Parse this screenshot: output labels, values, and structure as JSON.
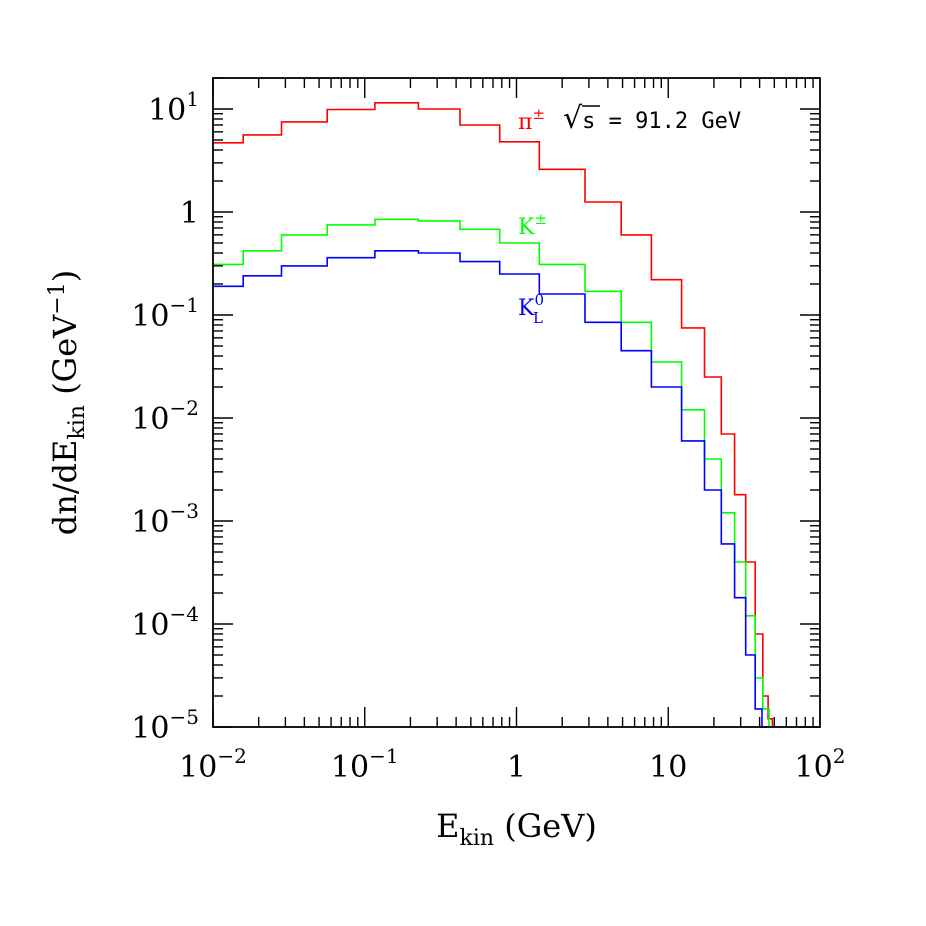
{
  "chart_data": {
    "type": "line",
    "style": "step-histogram",
    "x_scale": "log",
    "y_scale": "log",
    "xlim": [
      0.01,
      100
    ],
    "ylim": [
      1e-05,
      20
    ],
    "xlabel": {
      "main": "E",
      "sub": "kin",
      "rest": " (GeV)"
    },
    "ylabel": {
      "main": "dn/dE",
      "sub": "kin",
      "rest": "  (GeV",
      "sup": "−1",
      "close": ")"
    },
    "x_ticks": [
      {
        "value": 0.01,
        "base": "10",
        "exp": "−2"
      },
      {
        "value": 0.1,
        "base": "10",
        "exp": "−1"
      },
      {
        "value": 1,
        "base": "1",
        "exp": ""
      },
      {
        "value": 10,
        "base": "10",
        "exp": ""
      },
      {
        "value": 100,
        "base": "10",
        "exp": "2"
      }
    ],
    "y_ticks": [
      {
        "value": 10,
        "base": "10",
        "exp": "1"
      },
      {
        "value": 1,
        "base": "1",
        "exp": ""
      },
      {
        "value": 0.1,
        "base": "10",
        "exp": "−1"
      },
      {
        "value": 0.01,
        "base": "10",
        "exp": "−2"
      },
      {
        "value": 0.001,
        "base": "10",
        "exp": "−3"
      },
      {
        "value": 0.0001,
        "base": "10",
        "exp": "−4"
      },
      {
        "value": 1e-05,
        "base": "10",
        "exp": "−5"
      }
    ],
    "annotation": {
      "sqrt_symbol": "√",
      "text": "s = 91.2 GeV"
    },
    "series": [
      {
        "name": "π±",
        "label": {
          "main": "π",
          "sup": "±"
        },
        "color": "#ff0000",
        "points": [
          [
            0.0125,
            4.7
          ],
          [
            0.02,
            5.6
          ],
          [
            0.04,
            7.5
          ],
          [
            0.08,
            9.9
          ],
          [
            0.17,
            11.5
          ],
          [
            0.3,
            10.0
          ],
          [
            0.6,
            7.0
          ],
          [
            1,
            4.8
          ],
          [
            2,
            2.6
          ],
          [
            4,
            1.25
          ],
          [
            6,
            0.6
          ],
          [
            10,
            0.22
          ],
          [
            15,
            0.075
          ],
          [
            20,
            0.025
          ],
          [
            25,
            0.007
          ],
          [
            30,
            0.0018
          ],
          [
            35,
            0.0004
          ],
          [
            40,
            8e-05
          ],
          [
            44,
            2e-05
          ],
          [
            47,
            1.2e-05
          ]
        ]
      },
      {
        "name": "K±",
        "label": {
          "main": "K",
          "sup": "±"
        },
        "color": "#00ff00",
        "points": [
          [
            0.0125,
            0.31
          ],
          [
            0.02,
            0.42
          ],
          [
            0.04,
            0.6
          ],
          [
            0.08,
            0.75
          ],
          [
            0.17,
            0.85
          ],
          [
            0.3,
            0.82
          ],
          [
            0.6,
            0.68
          ],
          [
            1,
            0.5
          ],
          [
            2,
            0.31
          ],
          [
            4,
            0.17
          ],
          [
            6,
            0.085
          ],
          [
            10,
            0.035
          ],
          [
            15,
            0.012
          ],
          [
            20,
            0.004
          ],
          [
            25,
            0.0012
          ],
          [
            30,
            0.0004
          ],
          [
            35,
            0.00012
          ],
          [
            40,
            3e-05
          ],
          [
            44,
            1.5e-05
          ]
        ]
      },
      {
        "name": "K⁰L",
        "label": {
          "main": "K",
          "sup": "0",
          "sub": "L"
        },
        "color": "#0000ff",
        "points": [
          [
            0.0125,
            0.19
          ],
          [
            0.02,
            0.24
          ],
          [
            0.04,
            0.3
          ],
          [
            0.08,
            0.36
          ],
          [
            0.17,
            0.42
          ],
          [
            0.3,
            0.4
          ],
          [
            0.6,
            0.33
          ],
          [
            1,
            0.25
          ],
          [
            2,
            0.16
          ],
          [
            4,
            0.085
          ],
          [
            6,
            0.045
          ],
          [
            10,
            0.02
          ],
          [
            15,
            0.006
          ],
          [
            20,
            0.002
          ],
          [
            25,
            0.0006
          ],
          [
            30,
            0.00018
          ],
          [
            35,
            5e-05
          ],
          [
            40,
            1.5e-05
          ],
          [
            43,
            1e-05
          ]
        ]
      }
    ]
  }
}
